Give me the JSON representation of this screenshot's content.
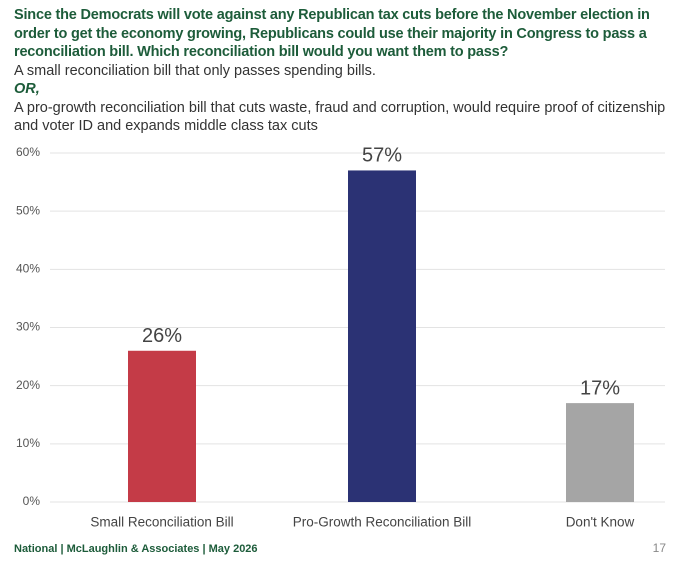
{
  "chart_data": {
    "type": "bar",
    "title": "Since the Democrats will vote against any Republican tax cuts before the November election in order to get the economy growing, Republicans could use their majority in Congress to pass a reconciliation bill. Which reconciliation bill would you want them to pass?",
    "option_a": "A small reconciliation bill that only passes spending bills.",
    "or": "OR,",
    "option_b": "A pro-growth reconciliation bill that cuts waste, fraud and corruption, would require proof of citizenship and voter ID and expands middle class tax cuts",
    "categories": [
      "Small Reconciliation Bill",
      "Pro-Growth Reconciliation Bill",
      "Don't Know"
    ],
    "values": [
      26,
      57,
      17
    ],
    "value_labels": [
      "26%",
      "57%",
      "17%"
    ],
    "colors": [
      "#c43b47",
      "#2b3274",
      "#a5a5a5"
    ],
    "ylim": [
      0,
      60
    ],
    "yticks": [
      {
        "value": 0,
        "label": "0%"
      },
      {
        "value": 10,
        "label": "10%"
      },
      {
        "value": 20,
        "label": "20%"
      },
      {
        "value": 30,
        "label": "30%"
      },
      {
        "value": 40,
        "label": "40%"
      },
      {
        "value": 50,
        "label": "50%"
      },
      {
        "value": 60,
        "label": "60%"
      }
    ],
    "grid": true,
    "footer": "National | McLaughlin & Associates | May 2026",
    "page_number": "17"
  }
}
